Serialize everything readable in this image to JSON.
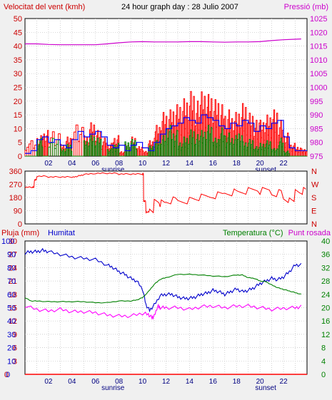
{
  "header": {
    "wind_title": "Velocitat del vent (kmh)",
    "graph_title": "24 hour graph day : 28 Julio 2007",
    "pressure_title": "Pressió (mb)"
  },
  "bottom_header": {
    "rain_title": "Pluja (mm)",
    "humidity_title": "Humitat",
    "temp_title": "Temperatura (°C)",
    "dew_title": "Punt rosada"
  },
  "colors": {
    "wind": "#ff0000",
    "gust": "#ff0000",
    "wind_avg": "#0000ff",
    "wind_min": "#008000",
    "pressure": "#cc00cc",
    "direction": "#ff0000",
    "humidity": "#0000cc",
    "temperature": "#008000",
    "dew": "#ff00ff",
    "rain": "#ff0000",
    "grid": "#c0c0c0",
    "plot_bg": "#ffffff",
    "frame_bg": "#f0f0f0",
    "left_axis_red": "#cc0000",
    "left_axis_blue": "#0000cc",
    "right_axis_green": "#008000",
    "right_axis_magenta": "#cc00cc"
  },
  "chart_data": [
    {
      "type": "line",
      "title": "24 hour graph day : 28 Julio 2007",
      "xlabel": "",
      "ylabel": "Velocitat del vent (kmh)",
      "x_ticks": [
        "02",
        "04",
        "06",
        "08",
        "10",
        "12",
        "14",
        "16",
        "18",
        "20",
        "22"
      ],
      "x_markers": [
        {
          "label": "sunrise",
          "hour": 7.0
        },
        {
          "label": "sunset",
          "hour": 20.0
        }
      ],
      "x_range": [
        0,
        24
      ],
      "ylim": [
        0,
        50
      ],
      "y_ticks": [
        0,
        5,
        10,
        15,
        20,
        25,
        30,
        35,
        40,
        45,
        50
      ],
      "y2label": "Pressió (mb)",
      "y2lim": [
        975,
        1025
      ],
      "y2_ticks": [
        975,
        980,
        985,
        990,
        995,
        1000,
        1005,
        1010,
        1015,
        1020,
        1025
      ],
      "grid": true,
      "series": [
        {
          "axis": "y",
          "style": "gust",
          "x": [
            0,
            1,
            1.5,
            2,
            3,
            3.5,
            4,
            5,
            5.5,
            6,
            6.5,
            7,
            7.5,
            8,
            8.5,
            9,
            9.5,
            10,
            10.5,
            11,
            11.5,
            12,
            12.5,
            13,
            13.5,
            14,
            14.5,
            15,
            15.5,
            16,
            16.5,
            17,
            17.5,
            18,
            18.5,
            19,
            19.5,
            20,
            20.5,
            21,
            21.5,
            22,
            22.5,
            23,
            23.5
          ],
          "y": [
            6,
            8,
            10,
            11,
            5,
            8,
            13,
            8,
            13,
            10,
            7,
            5,
            8,
            2,
            5,
            8,
            4,
            2,
            6,
            12,
            17,
            18,
            20,
            22,
            24,
            27,
            23,
            25,
            24,
            22,
            20,
            18,
            17,
            19,
            22,
            18,
            15,
            14,
            16,
            18,
            14,
            9,
            5,
            4,
            3
          ]
        },
        {
          "axis": "y",
          "style": "avg",
          "x": [
            0,
            0.5,
            1,
            1.5,
            2,
            2.5,
            3,
            3.5,
            4,
            4.5,
            5,
            5.5,
            6,
            6.5,
            7,
            7.5,
            8,
            8.5,
            9,
            9.5,
            10,
            10.5,
            11,
            11.5,
            12,
            12.5,
            13,
            13.5,
            14,
            14.5,
            15,
            15.5,
            16,
            16.5,
            17,
            17.5,
            18,
            18.5,
            19,
            19.5,
            20,
            20.5,
            21,
            21.5,
            22,
            22.5,
            23,
            23.5
          ],
          "y": [
            1,
            2,
            6,
            7,
            5,
            6,
            4,
            3,
            6,
            9,
            7,
            8,
            9,
            7,
            4,
            3,
            4,
            2,
            4,
            5,
            3,
            2,
            5,
            8,
            10,
            11,
            12,
            14,
            13,
            12,
            15,
            14,
            13,
            11,
            10,
            12,
            11,
            13,
            12,
            9,
            11,
            10,
            12,
            13,
            7,
            3,
            2,
            2
          ]
        },
        {
          "axis": "y",
          "style": "min",
          "x": [
            0,
            1,
            1.5,
            2,
            3,
            3.5,
            4,
            5,
            5.5,
            6,
            6.5,
            7,
            7.5,
            8,
            8.5,
            9,
            9.5,
            10,
            10.5,
            11,
            11.5,
            12,
            12.5,
            13,
            13.5,
            14,
            14.5,
            15,
            15.5,
            16,
            16.5,
            17,
            17.5,
            18,
            18.5,
            19,
            19.5,
            20,
            20.5,
            21,
            21.5,
            22,
            22.5,
            23,
            23.5
          ],
          "y": [
            0,
            7,
            0,
            8,
            3,
            5,
            0,
            6,
            8,
            7,
            0,
            3,
            5,
            0,
            6,
            7,
            0,
            0,
            4,
            6,
            8,
            12,
            10,
            6,
            8,
            11,
            9,
            10,
            12,
            7,
            11,
            9,
            8,
            10,
            6,
            7,
            4,
            5,
            6,
            3,
            7,
            2,
            0,
            0,
            0
          ]
        },
        {
          "axis": "y2",
          "name": "Pressió",
          "x": [
            0,
            1,
            2,
            3,
            4,
            5,
            6,
            7,
            8,
            9,
            10,
            11,
            12,
            13,
            14,
            15,
            16,
            17,
            18,
            19,
            20,
            21,
            22,
            23,
            23.5
          ],
          "y": [
            1015.8,
            1015.8,
            1015.6,
            1015.5,
            1015.5,
            1015.5,
            1015.5,
            1015.8,
            1016.2,
            1016.5,
            1016.6,
            1016.5,
            1016.5,
            1016.5,
            1016.6,
            1016.6,
            1016.5,
            1016.4,
            1016.5,
            1016.5,
            1016.6,
            1017.0,
            1017.3,
            1017.5,
            1017.6
          ]
        }
      ]
    },
    {
      "type": "line",
      "ylabel": "",
      "x_range": [
        0,
        24
      ],
      "ylim": [
        0,
        360
      ],
      "y_ticks": [
        0,
        90,
        180,
        270,
        360
      ],
      "y2_ticks": [
        "N",
        "W",
        "S",
        "E",
        "N"
      ],
      "grid": true,
      "series": [
        {
          "name": "direction",
          "x": [
            0,
            0.6,
            0.8,
            1,
            2,
            3,
            4,
            4.5,
            5,
            6,
            7,
            8,
            9,
            10,
            10.1,
            10.3,
            10.6,
            11,
            11.5,
            12,
            13,
            14,
            15,
            16,
            17,
            18,
            19,
            20,
            21,
            22,
            22.5,
            23,
            23.5
          ],
          "y": [
            250,
            250,
            300,
            325,
            320,
            320,
            320,
            330,
            340,
            345,
            345,
            340,
            340,
            340,
            155,
            80,
            95,
            150,
            140,
            160,
            160,
            170,
            180,
            195,
            215,
            220,
            230,
            225,
            210,
            170,
            165,
            210,
            225
          ]
        }
      ]
    },
    {
      "type": "line",
      "x_ticks": [
        "02",
        "04",
        "06",
        "08",
        "10",
        "12",
        "14",
        "16",
        "18",
        "20",
        "22"
      ],
      "x_markers": [
        {
          "label": "sunrise",
          "hour": 7.0
        },
        {
          "label": "sunset",
          "hour": 20.0
        }
      ],
      "x_range": [
        0,
        24
      ],
      "y_ticks_rain": [
        0,
        3,
        6,
        9,
        12,
        15,
        18,
        21,
        24,
        27,
        30
      ],
      "ylim_rain": [
        0,
        30
      ],
      "y_ticks_humidity": [
        0,
        10,
        20,
        30,
        40,
        50,
        60,
        70,
        80,
        90,
        100
      ],
      "ylim_humidity": [
        0,
        100
      ],
      "y2_ticks_temp": [
        0,
        4,
        8,
        12,
        16,
        20,
        24,
        28,
        32,
        36,
        40
      ],
      "y2lim_temp": [
        0,
        40
      ],
      "grid": true,
      "series": [
        {
          "name": "Humitat",
          "axis": "humidity",
          "x": [
            0,
            0.5,
            1,
            1.5,
            2,
            3,
            4,
            5,
            6,
            7,
            7.5,
            8,
            8.5,
            9,
            9.5,
            10,
            10.3,
            10.6,
            11,
            11.5,
            12,
            12.5,
            13,
            13.5,
            14,
            14.5,
            15,
            15.5,
            16,
            16.5,
            17,
            17.5,
            18,
            18.5,
            19,
            19.5,
            20,
            20.5,
            21,
            21.5,
            22,
            22.5,
            23,
            23.5
          ],
          "y": [
            91,
            92,
            92,
            93,
            92,
            90,
            88,
            87,
            86,
            82,
            80,
            77,
            75,
            72,
            70,
            64,
            52,
            48,
            52,
            59,
            60,
            60,
            58,
            57,
            57,
            58,
            60,
            61,
            63,
            62,
            60,
            62,
            64,
            62,
            63,
            65,
            68,
            70,
            72,
            71,
            73,
            77,
            82,
            82
          ]
        },
        {
          "name": "Temperatura",
          "axis": "temp",
          "x": [
            0,
            0.5,
            1,
            2,
            3,
            4,
            5,
            6,
            7,
            8,
            9,
            9.5,
            10,
            10.5,
            11,
            11.5,
            12,
            13,
            14,
            15,
            16,
            17,
            18,
            18.5,
            19,
            19.5,
            20,
            20.5,
            21,
            21.5,
            22,
            22.5,
            23,
            23.5
          ],
          "y": [
            23,
            22,
            22,
            21.8,
            21.8,
            21.8,
            21.8,
            21.5,
            21.5,
            22,
            22,
            22.3,
            23,
            24.8,
            27,
            28.5,
            29,
            30,
            30,
            29.8,
            29.5,
            29.3,
            29.8,
            29.8,
            29,
            28.8,
            28,
            27.8,
            26.8,
            26,
            25.5,
            25,
            24.5,
            24
          ]
        },
        {
          "name": "Punt rosada",
          "axis": "temp",
          "x": [
            0,
            1,
            2,
            3,
            4,
            5,
            6,
            7,
            8,
            9,
            10,
            10.5,
            10.8,
            11,
            11.3,
            11.5,
            12,
            13,
            14,
            15,
            16,
            17,
            18,
            19,
            20,
            21,
            22,
            23,
            23.5
          ],
          "y": [
            20.5,
            19.5,
            19,
            19.5,
            18.8,
            18.8,
            18.5,
            17.8,
            17.5,
            17.5,
            18.3,
            18,
            17,
            17.5,
            20.5,
            20,
            20,
            20,
            19.5,
            20.3,
            20.5,
            20,
            20.5,
            20.5,
            20,
            19.5,
            19.8,
            20,
            20.3
          ]
        },
        {
          "name": "Pluja",
          "axis": "rain",
          "x": [
            0,
            24
          ],
          "y": [
            0,
            0
          ]
        }
      ]
    }
  ]
}
